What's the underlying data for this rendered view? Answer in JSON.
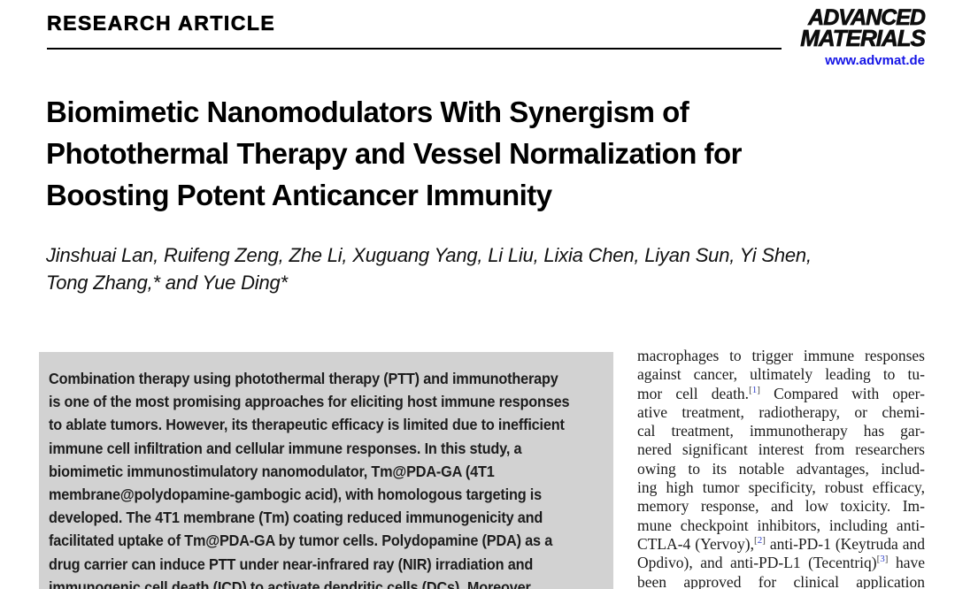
{
  "header": {
    "section_label": "RESEARCH ARTICLE",
    "journal_name_line1": "ADVANCED",
    "journal_name_line2": "MATERIALS",
    "website": "www.advmat.de"
  },
  "article": {
    "title_line1": "Biomimetic Nanomodulators With Synergism of",
    "title_line2": "Photothermal Therapy and Vessel Normalization for",
    "title_line3": "Boosting Potent Anticancer Immunity",
    "authors_line1": "Jinshuai Lan, Ruifeng Zeng, Zhe Li, Xuguang Yang, Li Liu, Lixia Chen, Liyan Sun, Yi Shen,",
    "authors_line2": "Tong Zhang,* and Yue Ding*"
  },
  "abstract": {
    "lines": [
      "Combination therapy using photothermal therapy (PTT) and immunotherapy",
      "is one of the most promising approaches for eliciting host immune responses",
      "to ablate tumors. However, its therapeutic efficacy is limited due to inefficient",
      "immune cell infiltration and cellular immune responses. In this study, a",
      "biomimetic immunostimulatory nanomodulator, Tm@PDA-GA (4T1",
      "membrane@polydopamine-gambogic acid), with homologous targeting is",
      "developed. The 4T1 membrane (Tm) coating reduced immunogenicity and",
      "facilitated uptake of Tm@PDA-GA by tumor cells. Polydopamine (PDA) as a",
      "drug carrier can induce PTT under near-infrared ray (NIR) irradiation and",
      "immunogenic cell death (ICD) to activate dendritic cells (DCs). Moreover,"
    ]
  },
  "body_column": {
    "lines": [
      "macrophages to trigger immune responses",
      "against cancer, ultimately leading to tu-",
      "mor cell death.[1] Compared with oper-",
      "ative treatment, radiotherapy, or chemi-",
      "cal treatment, immunotherapy has gar-",
      "nered significant interest from researchers",
      "owing to its notable advantages, includ-",
      "ing high tumor specificity, robust efficacy,",
      "memory response, and low toxicity. Im-",
      "mune checkpoint inhibitors, including anti-",
      "CTLA-4 (Yervoy),[2] anti-PD-1 (Keytruda and",
      "Opdivo), and anti-PD-L1 (Tecentriq)[3] have",
      "been approved for clinical application"
    ]
  },
  "colors": {
    "citation_blue": "#3344cc",
    "link_blue": "#1515e6",
    "abstract_bg": "#d2d2d2"
  }
}
